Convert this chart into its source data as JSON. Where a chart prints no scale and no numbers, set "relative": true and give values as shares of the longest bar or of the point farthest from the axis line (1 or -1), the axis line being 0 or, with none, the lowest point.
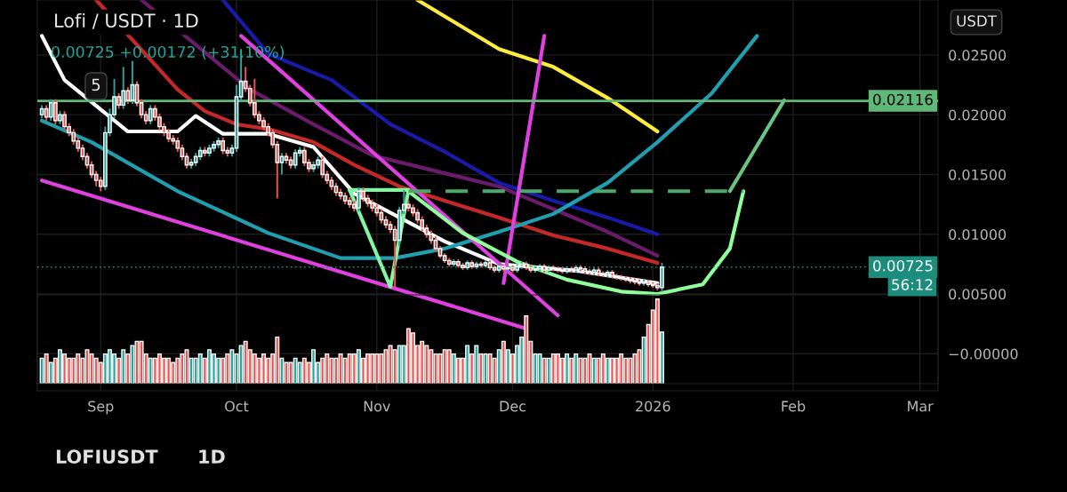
{
  "chart_data": [
    {
      "type": "candlestick",
      "title": "Lofi / USDT · 1D",
      "subtitle": "0.00725 +0.00172 (+31.10%)",
      "x": [
        "2025-08-19",
        "2025-08-20",
        "2025-08-21",
        "2025-08-22",
        "2025-08-23",
        "2025-08-24",
        "2025-08-25",
        "2025-08-26",
        "2025-08-27",
        "2025-08-28",
        "2025-08-29",
        "2025-08-30",
        "2025-08-31",
        "2025-09-01",
        "2025-09-02",
        "2025-09-03",
        "2025-09-04",
        "2025-09-05",
        "2025-09-06",
        "2025-09-07",
        "2025-09-08",
        "2025-09-09",
        "2025-09-10",
        "2025-09-11",
        "2025-09-12",
        "2025-09-13",
        "2025-09-14",
        "2025-09-15",
        "2025-09-16",
        "2025-09-17",
        "2025-09-18",
        "2025-09-19",
        "2025-09-20",
        "2025-09-21",
        "2025-09-22",
        "2025-09-23",
        "2025-09-24",
        "2025-09-25",
        "2025-09-26",
        "2025-09-27",
        "2025-09-28",
        "2025-09-29",
        "2025-09-30",
        "2025-10-01",
        "2025-10-02",
        "2025-10-03",
        "2025-10-04",
        "2025-10-05",
        "2025-10-06",
        "2025-10-07",
        "2025-10-08",
        "2025-10-09",
        "2025-10-10",
        "2025-10-11",
        "2025-10-12",
        "2025-10-13",
        "2025-10-14",
        "2025-10-15",
        "2025-10-16",
        "2025-10-17",
        "2025-10-18",
        "2025-10-19",
        "2025-10-20",
        "2025-10-21",
        "2025-10-22",
        "2025-10-23",
        "2025-10-24",
        "2025-10-25",
        "2025-10-26",
        "2025-10-27",
        "2025-10-28",
        "2025-10-29",
        "2025-10-30",
        "2025-10-31",
        "2025-11-01",
        "2025-11-02",
        "2025-11-03",
        "2025-11-04",
        "2025-11-05",
        "2025-11-06",
        "2025-11-07",
        "2025-11-08",
        "2025-11-09",
        "2025-11-10",
        "2025-11-11",
        "2025-11-12",
        "2025-11-13",
        "2025-11-14",
        "2025-11-15",
        "2025-11-16",
        "2025-11-17",
        "2025-11-18",
        "2025-11-19",
        "2025-11-20",
        "2025-11-21",
        "2025-11-22",
        "2025-11-23",
        "2025-11-24",
        "2025-11-25",
        "2025-11-26",
        "2025-11-27",
        "2025-11-28",
        "2025-11-29",
        "2025-11-30",
        "2025-12-01",
        "2025-12-02",
        "2025-12-03",
        "2025-12-04",
        "2025-12-05",
        "2025-12-06",
        "2025-12-07",
        "2025-12-08",
        "2025-12-09",
        "2025-12-10",
        "2025-12-11",
        "2025-12-12",
        "2025-12-13",
        "2025-12-14",
        "2025-12-15",
        "2025-12-16",
        "2025-12-17",
        "2025-12-18",
        "2025-12-19",
        "2025-12-20",
        "2025-12-21",
        "2025-12-22",
        "2025-12-23",
        "2025-12-24",
        "2025-12-25",
        "2025-12-26",
        "2025-12-27",
        "2025-12-28",
        "2025-12-29",
        "2025-12-30",
        "2025-12-31",
        "2026-01-01",
        "2026-01-02",
        "2026-01-03"
      ],
      "ohlc": [
        [
          0.02,
          0.0208,
          0.0197,
          0.0205
        ],
        [
          0.0205,
          0.0208,
          0.0195,
          0.0198
        ],
        [
          0.0198,
          0.0213,
          0.0195,
          0.021
        ],
        [
          0.021,
          0.0213,
          0.0192,
          0.0195
        ],
        [
          0.0195,
          0.0203,
          0.0192,
          0.02
        ],
        [
          0.02,
          0.0203,
          0.0187,
          0.019
        ],
        [
          0.019,
          0.0193,
          0.0182,
          0.0185
        ],
        [
          0.0185,
          0.0188,
          0.0175,
          0.0178
        ],
        [
          0.0178,
          0.0181,
          0.0169,
          0.0172
        ],
        [
          0.0172,
          0.0175,
          0.0162,
          0.0165
        ],
        [
          0.0165,
          0.0168,
          0.0155,
          0.0158
        ],
        [
          0.0158,
          0.0161,
          0.0147,
          0.015
        ],
        [
          0.015,
          0.0153,
          0.014,
          0.0145
        ],
        [
          0.0145,
          0.0148,
          0.0136,
          0.014
        ],
        [
          0.014,
          0.019,
          0.0137,
          0.0185
        ],
        [
          0.0185,
          0.0205,
          0.0182,
          0.02
        ],
        [
          0.02,
          0.023,
          0.0197,
          0.0215
        ],
        [
          0.0215,
          0.0218,
          0.0205,
          0.0208
        ],
        [
          0.0208,
          0.024,
          0.0205,
          0.022
        ],
        [
          0.022,
          0.0223,
          0.0209,
          0.0212
        ],
        [
          0.0212,
          0.0245,
          0.0209,
          0.0225
        ],
        [
          0.0225,
          0.0228,
          0.0207,
          0.021
        ],
        [
          0.021,
          0.0213,
          0.0197,
          0.02
        ],
        [
          0.02,
          0.0203,
          0.0192,
          0.0195
        ],
        [
          0.0195,
          0.0208,
          0.0192,
          0.0205
        ],
        [
          0.0205,
          0.0208,
          0.0195,
          0.0198
        ],
        [
          0.0198,
          0.0201,
          0.0187,
          0.019
        ],
        [
          0.019,
          0.0193,
          0.0182,
          0.0185
        ],
        [
          0.0185,
          0.0188,
          0.0177,
          0.018
        ],
        [
          0.018,
          0.0183,
          0.0175,
          0.0178
        ],
        [
          0.0178,
          0.0181,
          0.0169,
          0.0172
        ],
        [
          0.0172,
          0.0175,
          0.0162,
          0.0165
        ],
        [
          0.0165,
          0.0168,
          0.0155,
          0.0158
        ],
        [
          0.0158,
          0.0163,
          0.0155,
          0.016
        ],
        [
          0.016,
          0.0168,
          0.0157,
          0.0165
        ],
        [
          0.0165,
          0.0173,
          0.0162,
          0.017
        ],
        [
          0.017,
          0.0173,
          0.0165,
          0.0168
        ],
        [
          0.0168,
          0.0175,
          0.0165,
          0.0172
        ],
        [
          0.0172,
          0.0178,
          0.0169,
          0.0175
        ],
        [
          0.0175,
          0.0181,
          0.0172,
          0.0178
        ],
        [
          0.0178,
          0.0181,
          0.0167,
          0.017
        ],
        [
          0.017,
          0.0173,
          0.0165,
          0.0168
        ],
        [
          0.0168,
          0.0175,
          0.0165,
          0.0172
        ],
        [
          0.0172,
          0.0225,
          0.0169,
          0.0215
        ],
        [
          0.0215,
          0.0255,
          0.0212,
          0.0228
        ],
        [
          0.0228,
          0.024,
          0.0219,
          0.0222
        ],
        [
          0.0222,
          0.0225,
          0.0207,
          0.021
        ],
        [
          0.021,
          0.023,
          0.0197,
          0.02
        ],
        [
          0.02,
          0.0203,
          0.0192,
          0.0195
        ],
        [
          0.0195,
          0.0198,
          0.0187,
          0.019
        ],
        [
          0.019,
          0.0193,
          0.0182,
          0.0185
        ],
        [
          0.0185,
          0.0188,
          0.0172,
          0.0175
        ],
        [
          0.0175,
          0.0178,
          0.013,
          0.016
        ],
        [
          0.016,
          0.0168,
          0.015,
          0.0165
        ],
        [
          0.0165,
          0.0168,
          0.0159,
          0.0162
        ],
        [
          0.0162,
          0.0165,
          0.0155,
          0.0158
        ],
        [
          0.0158,
          0.0171,
          0.0155,
          0.0168
        ],
        [
          0.0168,
          0.0173,
          0.0165,
          0.017
        ],
        [
          0.017,
          0.0173,
          0.0157,
          0.016
        ],
        [
          0.016,
          0.0163,
          0.0152,
          0.0155
        ],
        [
          0.0155,
          0.0161,
          0.0152,
          0.0158
        ],
        [
          0.0158,
          0.0165,
          0.0155,
          0.0162
        ],
        [
          0.0162,
          0.0165,
          0.0147,
          0.015
        ],
        [
          0.015,
          0.0153,
          0.0142,
          0.0145
        ],
        [
          0.0145,
          0.0148,
          0.0137,
          0.014
        ],
        [
          0.014,
          0.0143,
          0.0132,
          0.0135
        ],
        [
          0.0135,
          0.0138,
          0.0129,
          0.0132
        ],
        [
          0.0132,
          0.0135,
          0.0125,
          0.0128
        ],
        [
          0.0128,
          0.0131,
          0.0122,
          0.0125
        ],
        [
          0.0125,
          0.0128,
          0.0119,
          0.0122
        ],
        [
          0.0122,
          0.0139,
          0.0119,
          0.0136
        ],
        [
          0.0136,
          0.0139,
          0.0127,
          0.013
        ],
        [
          0.013,
          0.0133,
          0.0123,
          0.0126
        ],
        [
          0.0126,
          0.0129,
          0.0119,
          0.0122
        ],
        [
          0.0122,
          0.0125,
          0.0115,
          0.0118
        ],
        [
          0.0118,
          0.0121,
          0.0109,
          0.0112
        ],
        [
          0.0112,
          0.0115,
          0.0105,
          0.0108
        ],
        [
          0.0108,
          0.0111,
          0.0101,
          0.0104
        ],
        [
          0.0104,
          0.0107,
          0.0056,
          0.0095
        ],
        [
          0.0095,
          0.0123,
          0.009,
          0.012
        ],
        [
          0.012,
          0.0137,
          0.0117,
          0.0125
        ],
        [
          0.0125,
          0.0128,
          0.0119,
          0.0122
        ],
        [
          0.0122,
          0.0125,
          0.0115,
          0.0118
        ],
        [
          0.0118,
          0.0121,
          0.0109,
          0.0112
        ],
        [
          0.0112,
          0.0115,
          0.0102,
          0.0105
        ],
        [
          0.0105,
          0.0108,
          0.0097,
          0.01
        ],
        [
          0.01,
          0.0103,
          0.0092,
          0.0095
        ],
        [
          0.0095,
          0.0098,
          0.0085,
          0.0088
        ],
        [
          0.0088,
          0.009,
          0.008,
          0.0082
        ],
        [
          0.0082,
          0.0084,
          0.0076,
          0.0078
        ],
        [
          0.0078,
          0.008,
          0.0073,
          0.0075
        ],
        [
          0.0075,
          0.0079,
          0.0073,
          0.0077
        ],
        [
          0.0077,
          0.0079,
          0.0072,
          0.0074
        ],
        [
          0.0074,
          0.0076,
          0.007,
          0.0072
        ],
        [
          0.0072,
          0.0078,
          0.007,
          0.0076
        ],
        [
          0.0076,
          0.0078,
          0.0071,
          0.0073
        ],
        [
          0.0073,
          0.0077,
          0.0071,
          0.0075
        ],
        [
          0.0075,
          0.0077,
          0.0072,
          0.0074
        ],
        [
          0.0074,
          0.0078,
          0.0072,
          0.0076
        ],
        [
          0.0076,
          0.0078,
          0.007,
          0.0072
        ],
        [
          0.0072,
          0.0074,
          0.0068,
          0.007
        ],
        [
          0.007,
          0.0075,
          0.0068,
          0.0073
        ],
        [
          0.0073,
          0.0075,
          0.0069,
          0.0071
        ],
        [
          0.0071,
          0.0074,
          0.0069,
          0.0072
        ],
        [
          0.0072,
          0.0074,
          0.0068,
          0.007
        ],
        [
          0.007,
          0.0075,
          0.0068,
          0.0073
        ],
        [
          0.0073,
          0.0077,
          0.0071,
          0.0075
        ],
        [
          0.0075,
          0.0077,
          0.007,
          0.0072
        ],
        [
          0.0072,
          0.0074,
          0.0068,
          0.007
        ],
        [
          0.007,
          0.0073,
          0.0068,
          0.0071
        ],
        [
          0.0071,
          0.0075,
          0.0069,
          0.0073
        ],
        [
          0.0073,
          0.0075,
          0.0068,
          0.007
        ],
        [
          0.007,
          0.0074,
          0.0068,
          0.0072
        ],
        [
          0.0072,
          0.0074,
          0.0069,
          0.0071
        ],
        [
          0.0071,
          0.0073,
          0.0068,
          0.007
        ],
        [
          0.007,
          0.0072,
          0.0067,
          0.0069
        ],
        [
          0.0069,
          0.0073,
          0.0067,
          0.0071
        ],
        [
          0.0071,
          0.0073,
          0.0068,
          0.007
        ],
        [
          0.007,
          0.0074,
          0.0068,
          0.0072
        ],
        [
          0.0072,
          0.0074,
          0.0069,
          0.0071
        ],
        [
          0.0071,
          0.0073,
          0.0067,
          0.0069
        ],
        [
          0.0069,
          0.0071,
          0.0066,
          0.0068
        ],
        [
          0.0068,
          0.0072,
          0.0066,
          0.007
        ],
        [
          0.007,
          0.0072,
          0.0065,
          0.0067
        ],
        [
          0.0067,
          0.0069,
          0.0064,
          0.0066
        ],
        [
          0.0066,
          0.007,
          0.0064,
          0.0068
        ],
        [
          0.0068,
          0.007,
          0.0063,
          0.0065
        ],
        [
          0.0065,
          0.0067,
          0.0062,
          0.0064
        ],
        [
          0.0064,
          0.0066,
          0.0061,
          0.0063
        ],
        [
          0.0063,
          0.0065,
          0.006,
          0.0062
        ],
        [
          0.0062,
          0.0064,
          0.0059,
          0.0061
        ],
        [
          0.0061,
          0.0063,
          0.0058,
          0.006
        ],
        [
          0.006,
          0.0062,
          0.0057,
          0.0059
        ],
        [
          0.0059,
          0.0062,
          0.0057,
          0.006
        ],
        [
          0.006,
          0.0062,
          0.0056,
          0.0058
        ],
        [
          0.0058,
          0.006,
          0.0055,
          0.0057
        ],
        [
          0.0057,
          0.0059,
          0.0053,
          0.00553
        ],
        [
          0.00553,
          0.0076,
          0.0052,
          0.00725
        ]
      ],
      "colors": [
        "#26a69a",
        "#ef5350",
        "#26a69a",
        "#ef5350",
        "#26a69a",
        "#ef5350",
        "#ef5350",
        "#ef5350",
        "#ef5350",
        "#ef5350",
        "#ef5350",
        "#ef5350",
        "#ef5350",
        "#ef5350",
        "#26a69a",
        "#26a69a",
        "#26a69a",
        "#ef5350",
        "#26a69a",
        "#ef5350",
        "#26a69a",
        "#ef5350",
        "#ef5350",
        "#ef5350",
        "#26a69a",
        "#ef5350",
        "#ef5350",
        "#ef5350",
        "#ef5350",
        "#ef5350",
        "#ef5350",
        "#ef5350",
        "#ef5350",
        "#26a69a",
        "#26a69a",
        "#26a69a",
        "#ef5350",
        "#26a69a",
        "#26a69a",
        "#26a69a",
        "#ef5350",
        "#ef5350",
        "#26a69a",
        "#26a69a",
        "#26a69a",
        "#ef5350",
        "#ef5350",
        "#ef5350",
        "#ef5350",
        "#ef5350",
        "#ef5350",
        "#ef5350",
        "#ef5350",
        "#26a69a",
        "#ef5350",
        "#ef5350",
        "#26a69a",
        "#26a69a",
        "#ef5350",
        "#ef5350",
        "#26a69a",
        "#26a69a",
        "#ef5350",
        "#ef5350",
        "#ef5350",
        "#ef5350",
        "#ef5350",
        "#ef5350",
        "#ef5350",
        "#ef5350",
        "#26a69a",
        "#ef5350",
        "#ef5350",
        "#ef5350",
        "#ef5350",
        "#ef5350",
        "#ef5350",
        "#ef5350",
        "#ef5350",
        "#26a69a",
        "#26a69a",
        "#ef5350",
        "#ef5350",
        "#ef5350",
        "#ef5350",
        "#ef5350",
        "#ef5350",
        "#ef5350",
        "#ef5350",
        "#ef5350",
        "#ef5350",
        "#26a69a",
        "#ef5350",
        "#ef5350",
        "#26a69a",
        "#ef5350",
        "#26a69a",
        "#ef5350",
        "#26a69a",
        "#ef5350",
        "#ef5350",
        "#26a69a",
        "#ef5350",
        "#26a69a",
        "#ef5350",
        "#26a69a",
        "#26a69a",
        "#ef5350",
        "#ef5350",
        "#26a69a",
        "#26a69a",
        "#ef5350",
        "#26a69a",
        "#ef5350",
        "#ef5350",
        "#ef5350",
        "#26a69a",
        "#ef5350",
        "#26a69a",
        "#ef5350",
        "#ef5350",
        "#ef5350",
        "#26a69a",
        "#ef5350",
        "#ef5350",
        "#26a69a",
        "#ef5350",
        "#ef5350",
        "#ef5350",
        "#ef5350",
        "#ef5350",
        "#ef5350",
        "#ef5350",
        "#26a69a",
        "#ef5350",
        "#ef5350",
        "#ef5350",
        "#26a69a"
      ],
      "xlim": [
        "2025-08-18",
        "2026-03-05"
      ],
      "xticks": [
        {
          "value": "2025-09-01",
          "label": "Sep"
        },
        {
          "value": "2025-10-01",
          "label": "Oct"
        },
        {
          "value": "2025-11-01",
          "label": "Nov"
        },
        {
          "value": "2025-12-01",
          "label": "Dec"
        },
        {
          "value": "2026-01-01",
          "label": "2026"
        },
        {
          "value": "2026-02-01",
          "label": "Feb"
        },
        {
          "value": "2026-03-01",
          "label": "Mar"
        }
      ],
      "ylim": [
        -0.0031,
        0.0296
      ],
      "yticks": [
        {
          "value": 0,
          "label": "−0.00000"
        },
        {
          "value": 0.005,
          "label": "0.00500"
        },
        {
          "value": 0.01,
          "label": "0.01000"
        },
        {
          "value": 0.015,
          "label": "0.01500"
        },
        {
          "value": 0.02,
          "label": "0.02000"
        },
        {
          "value": 0.025,
          "label": "0.02500"
        }
      ],
      "grid": true,
      "series": [
        {
          "type": "line",
          "color": "#ffffff",
          "x": [
            "2025-08-19",
            "2025-08-24",
            "2025-09-07",
            "2025-09-18",
            "2025-09-22",
            "2025-09-28",
            "2025-10-08",
            "2025-10-18",
            "2025-10-27",
            "2025-11-06",
            "2025-11-16",
            "2025-11-28",
            "2025-12-16",
            "2026-01-02"
          ],
          "values": [
            0.0266,
            0.0229,
            0.0186,
            0.0186,
            0.0199,
            0.0184,
            0.0184,
            0.0173,
            0.0134,
            0.0114,
            0.0094,
            0.0075,
            0.0069,
            0.0059
          ]
        },
        {
          "type": "line",
          "color": "#c62828",
          "x": [
            "2025-08-31",
            "2025-09-18",
            "2025-09-24",
            "2025-10-01",
            "2025-10-08",
            "2025-10-18",
            "2025-10-27",
            "2025-11-06",
            "2025-11-16",
            "2025-11-28",
            "2025-12-10",
            "2025-12-22",
            "2026-01-02"
          ],
          "values": [
            0.0296,
            0.0221,
            0.0203,
            0.0192,
            0.0188,
            0.0177,
            0.0158,
            0.014,
            0.0128,
            0.0114,
            0.0099,
            0.0088,
            0.0076
          ]
        },
        {
          "type": "line",
          "color": "#6a1b6a",
          "x": [
            "2025-09-10",
            "2025-10-04",
            "2025-10-18",
            "2025-10-31",
            "2025-11-16",
            "2025-11-28",
            "2025-12-10",
            "2025-12-22",
            "2026-01-02"
          ],
          "values": [
            0.0296,
            0.0221,
            0.0192,
            0.0166,
            0.0151,
            0.014,
            0.0121,
            0.0102,
            0.0082
          ]
        },
        {
          "type": "line",
          "color": "#1a1aaa",
          "x": [
            "2025-09-28",
            "2025-10-08",
            "2025-10-22",
            "2025-11-04",
            "2025-11-16",
            "2025-11-28",
            "2025-12-10",
            "2025-12-22",
            "2026-01-02"
          ],
          "values": [
            0.0296,
            0.0251,
            0.0229,
            0.0192,
            0.0169,
            0.0143,
            0.0128,
            0.0114,
            0.01
          ]
        },
        {
          "type": "line",
          "color": "#ffeb3b",
          "x": [
            "2025-11-10",
            "2025-11-28",
            "2025-12-10",
            "2025-12-22",
            "2026-01-02"
          ],
          "values": [
            0.0296,
            0.0255,
            0.024,
            0.0214,
            0.0186
          ]
        },
        {
          "type": "line",
          "color": "#1f9fb0",
          "x": [
            "2025-08-19",
            "2025-08-30",
            "2025-09-18",
            "2025-10-08",
            "2025-10-24",
            "2025-11-05",
            "2025-11-16",
            "2025-11-28",
            "2025-12-10",
            "2025-12-22",
            "2026-01-02",
            "2026-01-14",
            "2026-01-24"
          ],
          "values": [
            0.0195,
            0.0177,
            0.0136,
            0.0101,
            0.008,
            0.008,
            0.0088,
            0.0102,
            0.0117,
            0.0143,
            0.0177,
            0.0218,
            0.0266
          ]
        },
        {
          "type": "line",
          "color": "#e040e0",
          "x": [
            "2025-08-19",
            "2025-12-04"
          ],
          "values": [
            0.0145,
            0.0021
          ]
        },
        {
          "type": "line",
          "color": "#e040e0",
          "x": [
            "2025-10-02",
            "2025-12-11"
          ],
          "values": [
            0.0266,
            0.0032
          ]
        },
        {
          "type": "line",
          "color": "#e040e0",
          "x": [
            "2025-11-29",
            "2025-12-08"
          ],
          "values": [
            0.0059,
            0.0266
          ]
        },
        {
          "type": "line",
          "color": "#84f5a0",
          "x": [
            "2025-10-26",
            "2025-11-04",
            "2025-11-08"
          ],
          "values": [
            0.0137,
            0.0056,
            0.0137
          ]
        },
        {
          "type": "line",
          "color": "#84f5a0",
          "x": [
            "2025-10-26",
            "2025-11-08"
          ],
          "values": [
            0.0137,
            0.0137
          ]
        },
        {
          "type": "line",
          "color": "#90ff9a",
          "x": [
            "2025-11-08",
            "2025-11-20",
            "2025-12-02",
            "2025-12-13",
            "2025-12-25",
            "2026-01-02",
            "2026-01-12",
            "2026-01-18",
            "2026-01-21"
          ],
          "values": [
            0.0136,
            0.0101,
            0.0077,
            0.0062,
            0.0052,
            0.005,
            0.0058,
            0.0088,
            0.0136
          ]
        },
        {
          "type": "line",
          "color": "#4fa86a",
          "line_style": "dashed",
          "x": [
            "2025-11-08",
            "2026-01-21"
          ],
          "values": [
            0.0136,
            0.0136
          ]
        },
        {
          "type": "line",
          "color": "#69c484",
          "x": [
            "2026-01-18",
            "2026-01-30"
          ],
          "values": [
            0.0136,
            0.0212
          ]
        }
      ],
      "ref_lines": [
        {
          "axis": "y",
          "value": 0.02116,
          "label": "0.02116",
          "color": "#5fb878",
          "line_style": "solid"
        },
        {
          "axis": "y",
          "value": 0.00725,
          "label": "0.00725",
          "color": "#1c8c7c",
          "line_style": "dotted"
        }
      ],
      "annotations": [
        "56:12",
        "5",
        "USDT",
        "LOFIUSDT",
        "1D"
      ]
    },
    {
      "type": "bar",
      "relative": true,
      "tick_labels": false,
      "x": [
        "2025-08-19",
        "2025-08-20",
        "2025-08-21",
        "2025-08-22",
        "2025-08-23",
        "2025-08-24",
        "2025-08-25",
        "2025-08-26",
        "2025-08-27",
        "2025-08-28",
        "2025-08-29",
        "2025-08-30",
        "2025-08-31",
        "2025-09-01",
        "2025-09-02",
        "2025-09-03",
        "2025-09-04",
        "2025-09-05",
        "2025-09-06",
        "2025-09-07",
        "2025-09-08",
        "2025-09-09",
        "2025-09-10",
        "2025-09-11",
        "2025-09-12",
        "2025-09-13",
        "2025-09-14",
        "2025-09-15",
        "2025-09-16",
        "2025-09-17",
        "2025-09-18",
        "2025-09-19",
        "2025-09-20",
        "2025-09-21",
        "2025-09-22",
        "2025-09-23",
        "2025-09-24",
        "2025-09-25",
        "2025-09-26",
        "2025-09-27",
        "2025-09-28",
        "2025-09-29",
        "2025-09-30",
        "2025-10-01",
        "2025-10-02",
        "2025-10-03",
        "2025-10-04",
        "2025-10-05",
        "2025-10-06",
        "2025-10-07",
        "2025-10-08",
        "2025-10-09",
        "2025-10-10",
        "2025-10-11",
        "2025-10-12",
        "2025-10-13",
        "2025-10-14",
        "2025-10-15",
        "2025-10-16",
        "2025-10-17",
        "2025-10-18",
        "2025-10-19",
        "2025-10-20",
        "2025-10-21",
        "2025-10-22",
        "2025-10-23",
        "2025-10-24",
        "2025-10-25",
        "2025-10-26",
        "2025-10-27",
        "2025-10-28",
        "2025-10-29",
        "2025-10-30",
        "2025-10-31",
        "2025-11-01",
        "2025-11-02",
        "2025-11-03",
        "2025-11-04",
        "2025-11-05",
        "2025-11-06",
        "2025-11-07",
        "2025-11-08",
        "2025-11-09",
        "2025-11-10",
        "2025-11-11",
        "2025-11-12",
        "2025-11-13",
        "2025-11-14",
        "2025-11-15",
        "2025-11-16",
        "2025-11-17",
        "2025-11-18",
        "2025-11-19",
        "2025-11-20",
        "2025-11-21",
        "2025-11-22",
        "2025-11-23",
        "2025-11-24",
        "2025-11-25",
        "2025-11-26",
        "2025-11-27",
        "2025-11-28",
        "2025-11-29",
        "2025-11-30",
        "2025-12-01",
        "2025-12-02",
        "2025-12-03",
        "2025-12-04",
        "2025-12-05",
        "2025-12-06",
        "2025-12-07",
        "2025-12-08",
        "2025-12-09",
        "2025-12-10",
        "2025-12-11",
        "2025-12-12",
        "2025-12-13",
        "2025-12-14",
        "2025-12-15",
        "2025-12-16",
        "2025-12-17",
        "2025-12-18",
        "2025-12-19",
        "2025-12-20",
        "2025-12-21",
        "2025-12-22",
        "2025-12-23",
        "2025-12-24",
        "2025-12-25",
        "2025-12-26",
        "2025-12-27",
        "2025-12-28",
        "2025-12-29",
        "2025-12-30",
        "2025-12-31",
        "2026-01-01",
        "2026-01-02",
        "2026-01-03"
      ],
      "values": [
        0.3,
        0.35,
        0.25,
        0.3,
        0.4,
        0.35,
        0.3,
        0.3,
        0.35,
        0.3,
        0.4,
        0.35,
        0.3,
        0.25,
        0.35,
        0.4,
        0.35,
        0.3,
        0.4,
        0.35,
        0.45,
        0.5,
        0.5,
        0.35,
        0.3,
        0.3,
        0.35,
        0.3,
        0.3,
        0.25,
        0.3,
        0.35,
        0.4,
        0.3,
        0.3,
        0.35,
        0.3,
        0.4,
        0.35,
        0.3,
        0.3,
        0.35,
        0.4,
        0.35,
        0.45,
        0.5,
        0.4,
        0.35,
        0.3,
        0.35,
        0.3,
        0.35,
        0.55,
        0.3,
        0.25,
        0.25,
        0.3,
        0.25,
        0.3,
        0.25,
        0.4,
        0.25,
        0.3,
        0.35,
        0.3,
        0.3,
        0.35,
        0.3,
        0.35,
        0.35,
        0.4,
        0.3,
        0.35,
        0.35,
        0.35,
        0.35,
        0.4,
        0.45,
        0.4,
        0.45,
        0.45,
        0.65,
        0.6,
        0.45,
        0.5,
        0.45,
        0.4,
        0.35,
        0.35,
        0.4,
        0.4,
        0.35,
        0.3,
        0.3,
        0.45,
        0.35,
        0.45,
        0.35,
        0.35,
        0.35,
        0.3,
        0.4,
        0.5,
        0.4,
        0.35,
        0.45,
        0.55,
        0.8,
        0.5,
        0.35,
        0.35,
        0.3,
        0.3,
        0.35,
        0.35,
        0.3,
        0.35,
        0.3,
        0.35,
        0.3,
        0.3,
        0.35,
        0.3,
        0.3,
        0.35,
        0.3,
        0.3,
        0.3,
        0.35,
        0.3,
        0.3,
        0.35,
        0.4,
        0.55,
        0.7,
        0.87,
        1,
        0.61
      ],
      "colors": [
        "#26a69a",
        "#ef5350",
        "#26a69a",
        "#ef5350",
        "#26a69a",
        "#ef5350",
        "#ef5350",
        "#ef5350",
        "#ef5350",
        "#ef5350",
        "#ef5350",
        "#ef5350",
        "#ef5350",
        "#ef5350",
        "#26a69a",
        "#26a69a",
        "#26a69a",
        "#ef5350",
        "#26a69a",
        "#ef5350",
        "#26a69a",
        "#ef5350",
        "#ef5350",
        "#ef5350",
        "#26a69a",
        "#ef5350",
        "#ef5350",
        "#ef5350",
        "#ef5350",
        "#ef5350",
        "#ef5350",
        "#ef5350",
        "#ef5350",
        "#26a69a",
        "#26a69a",
        "#26a69a",
        "#ef5350",
        "#26a69a",
        "#26a69a",
        "#26a69a",
        "#ef5350",
        "#ef5350",
        "#26a69a",
        "#26a69a",
        "#26a69a",
        "#ef5350",
        "#ef5350",
        "#ef5350",
        "#ef5350",
        "#ef5350",
        "#ef5350",
        "#ef5350",
        "#ef5350",
        "#26a69a",
        "#ef5350",
        "#ef5350",
        "#26a69a",
        "#26a69a",
        "#ef5350",
        "#ef5350",
        "#26a69a",
        "#26a69a",
        "#ef5350",
        "#ef5350",
        "#ef5350",
        "#ef5350",
        "#ef5350",
        "#ef5350",
        "#ef5350",
        "#ef5350",
        "#26a69a",
        "#ef5350",
        "#ef5350",
        "#ef5350",
        "#ef5350",
        "#ef5350",
        "#ef5350",
        "#ef5350",
        "#ef5350",
        "#26a69a",
        "#26a69a",
        "#ef5350",
        "#ef5350",
        "#ef5350",
        "#ef5350",
        "#ef5350",
        "#ef5350",
        "#ef5350",
        "#ef5350",
        "#ef5350",
        "#ef5350",
        "#26a69a",
        "#ef5350",
        "#ef5350",
        "#26a69a",
        "#ef5350",
        "#26a69a",
        "#ef5350",
        "#26a69a",
        "#ef5350",
        "#ef5350",
        "#26a69a",
        "#ef5350",
        "#26a69a",
        "#ef5350",
        "#26a69a",
        "#26a69a",
        "#ef5350",
        "#ef5350",
        "#26a69a",
        "#26a69a",
        "#ef5350",
        "#26a69a",
        "#ef5350",
        "#ef5350",
        "#ef5350",
        "#26a69a",
        "#ef5350",
        "#26a69a",
        "#ef5350",
        "#ef5350",
        "#ef5350",
        "#26a69a",
        "#ef5350",
        "#ef5350",
        "#26a69a",
        "#ef5350",
        "#ef5350",
        "#ef5350",
        "#ef5350",
        "#ef5350",
        "#ef5350",
        "#ef5350",
        "#26a69a",
        "#ef5350",
        "#ef5350",
        "#ef5350",
        "#26a69a"
      ],
      "xlim": [
        "2025-08-18",
        "2026-03-05"
      ]
    }
  ]
}
